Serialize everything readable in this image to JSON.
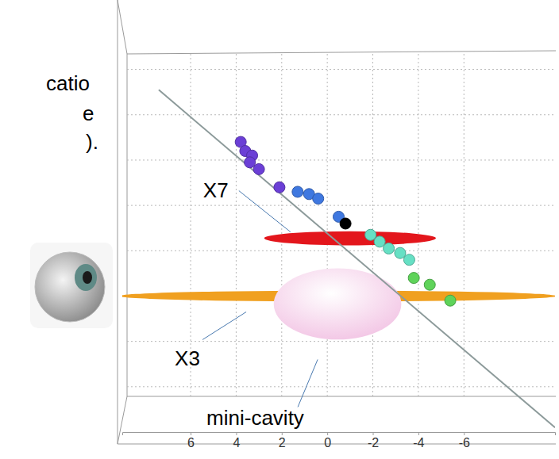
{
  "chart_data": {
    "type": "scatter",
    "xlim": [
      9,
      -10
    ],
    "xticks": [
      6,
      4,
      2,
      0,
      -2,
      -4,
      -6
    ],
    "ylim": [
      -6,
      11
    ],
    "yticks": [
      -4,
      -2,
      0,
      2,
      4,
      6,
      8,
      10
    ],
    "grid": true,
    "tick_labels": "x",
    "series": [
      {
        "color": "#6b3fd6",
        "marker": "circle",
        "x": [
          3.8,
          3.6,
          3.3,
          3.4,
          3.0,
          2.1
        ],
        "values": [
          6.8,
          6.4,
          6.2,
          5.9,
          5.6,
          4.8
        ]
      },
      {
        "color": "#3f78e0",
        "marker": "circle",
        "x": [
          1.3,
          0.8,
          0.4,
          -0.5
        ],
        "values": [
          4.6,
          4.5,
          4.3,
          3.5
        ]
      },
      {
        "color": "#000000",
        "marker": "circle",
        "x": [
          -0.8
        ],
        "values": [
          3.2
        ]
      },
      {
        "color": "#66e0c4",
        "marker": "circle",
        "x": [
          -1.9,
          -2.3,
          -2.7,
          -3.2,
          -3.6
        ],
        "values": [
          2.7,
          2.4,
          2.1,
          1.9,
          1.6
        ]
      },
      {
        "color": "#5fd35a",
        "marker": "circle",
        "x": [
          -3.8,
          -4.5,
          -5.4
        ],
        "values": [
          0.8,
          0.5,
          -0.2
        ]
      },
      {
        "type": "line",
        "color": "#8c9a9a",
        "x": [
          7.4,
          -10
        ],
        "values": [
          9.1,
          -5.8
        ]
      }
    ],
    "ellipses": [
      {
        "name": "X7",
        "color": "#e3161c",
        "x": -1.0,
        "y": 2.55,
        "rx": 3.77,
        "ry": 0.31
      },
      {
        "name": "X3",
        "color": "#f0a020",
        "x": -0.45,
        "y": 0,
        "rx": 9.6,
        "ry": 0.24
      },
      {
        "name": "mini-cavity",
        "color": "#f2c4e4",
        "x": -0.45,
        "y": -0.35,
        "rx": 2.8,
        "ry": 1.57
      }
    ],
    "annotations": [
      "catio",
      "e",
      ")."
    ]
  }
}
